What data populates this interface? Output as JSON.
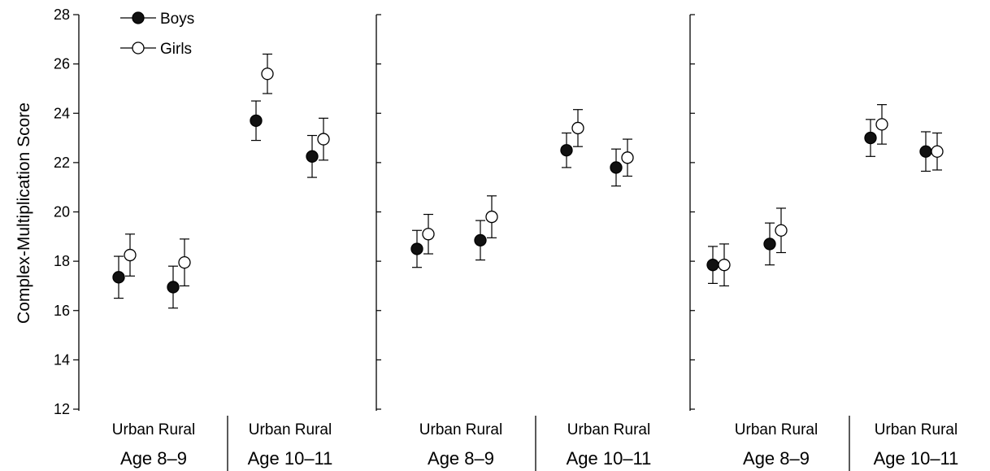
{
  "chart_data": [
    {
      "type": "scatter",
      "ylabel": "Complex-Multiplication Score",
      "ylim": [
        12,
        28
      ],
      "yticks": [
        12,
        14,
        16,
        18,
        20,
        22,
        24,
        26,
        28
      ],
      "groups": [
        {
          "label": "Age 8–9",
          "categories": [
            "Urban",
            "Rural"
          ]
        },
        {
          "label": "Age 10–11",
          "categories": [
            "Urban",
            "Rural"
          ]
        }
      ],
      "series": [
        {
          "name": "Boys",
          "marker": "filled-circle",
          "values": [
            17.35,
            16.95,
            23.7,
            22.25
          ],
          "error": [
            0.85,
            0.85,
            0.8,
            0.85
          ]
        },
        {
          "name": "Girls",
          "marker": "open-circle",
          "values": [
            18.25,
            17.95,
            25.6,
            22.95
          ],
          "error": [
            0.85,
            0.95,
            0.8,
            0.85
          ]
        }
      ],
      "legend": {
        "placement": "top-left",
        "entries": [
          "Boys",
          "Girls"
        ]
      }
    },
    {
      "type": "scatter",
      "ylim": [
        12,
        28
      ],
      "groups": [
        {
          "label": "Age 8–9",
          "categories": [
            "Urban",
            "Rural"
          ]
        },
        {
          "label": "Age 10–11",
          "categories": [
            "Urban",
            "Rural"
          ]
        }
      ],
      "series": [
        {
          "name": "Boys",
          "marker": "filled-circle",
          "values": [
            18.5,
            18.85,
            22.5,
            21.8
          ],
          "error": [
            0.75,
            0.8,
            0.7,
            0.75
          ]
        },
        {
          "name": "Girls",
          "marker": "open-circle",
          "values": [
            19.1,
            19.8,
            23.4,
            22.2
          ],
          "error": [
            0.8,
            0.85,
            0.75,
            0.75
          ]
        }
      ]
    },
    {
      "type": "scatter",
      "ylim": [
        12,
        28
      ],
      "groups": [
        {
          "label": "Age 8–9",
          "categories": [
            "Urban",
            "Rural"
          ]
        },
        {
          "label": "Age 10–11",
          "categories": [
            "Urban",
            "Rural"
          ]
        }
      ],
      "series": [
        {
          "name": "Boys",
          "marker": "filled-circle",
          "values": [
            17.85,
            18.7,
            23.0,
            22.45
          ],
          "error": [
            0.75,
            0.85,
            0.75,
            0.8
          ]
        },
        {
          "name": "Girls",
          "marker": "open-circle",
          "values": [
            17.85,
            19.25,
            23.55,
            22.45
          ],
          "error": [
            0.85,
            0.9,
            0.8,
            0.75
          ]
        }
      ]
    }
  ]
}
